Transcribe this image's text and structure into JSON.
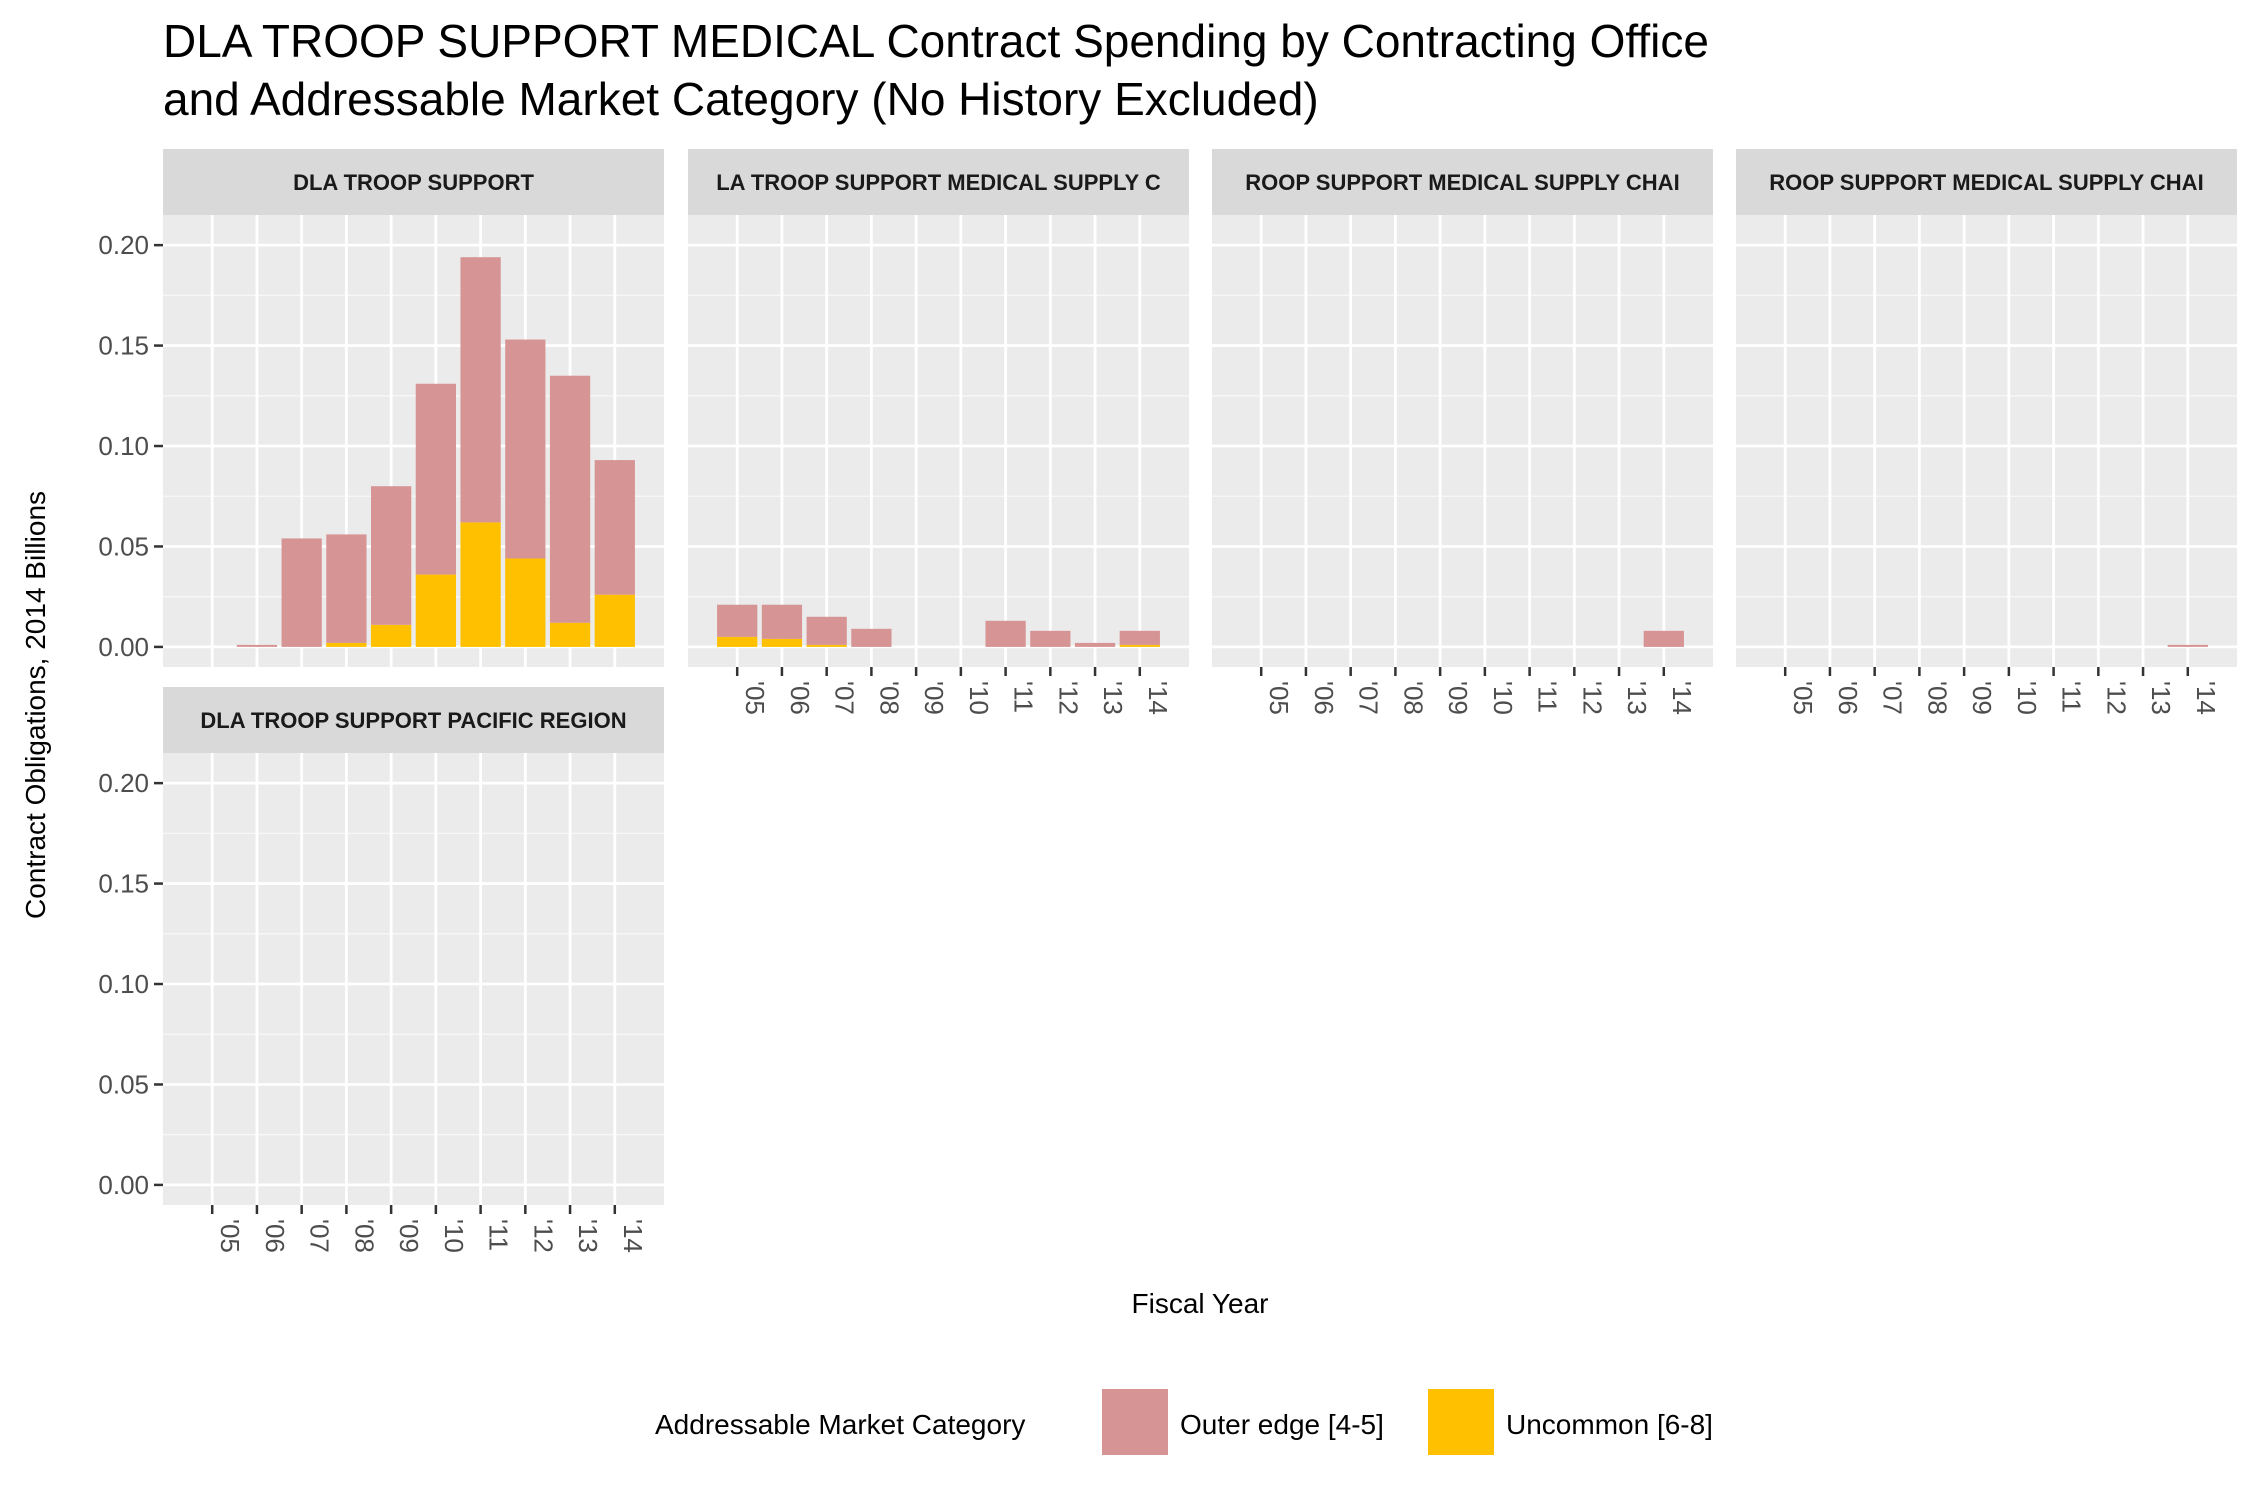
{
  "chart_data": {
    "type": "bar",
    "stacked": true,
    "title_lines": [
      "DLA TROOP SUPPORT MEDICAL Contract Spending by Contracting Office",
      "and Addressable Market Category (No History Excluded)"
    ],
    "xlabel": "Fiscal Year",
    "ylabel": "Contract Obligations, 2014 Billions",
    "ylim": [
      -0.01,
      0.215
    ],
    "yticks": [
      "0.00",
      "0.05",
      "0.10",
      "0.15",
      "0.20"
    ],
    "ytick_values": [
      0,
      0.05,
      0.1,
      0.15,
      0.2
    ],
    "categories": [
      "'05",
      "'06",
      "'07",
      "'08",
      "'09",
      "'10",
      "'11",
      "'12",
      "'13",
      "'14"
    ],
    "legend": {
      "title": "Addressable Market Category",
      "position": "bottom",
      "items": [
        {
          "label": "Outer edge [4-5]",
          "color": "#D69594"
        },
        {
          "label": "Uncommon [6-8]",
          "color": "#FFC000"
        }
      ]
    },
    "panels": [
      {
        "strip": "DLA TROOP SUPPORT",
        "series": [
          {
            "name": "Outer edge [4-5]",
            "values": [
              0,
              0.001,
              0.054,
              0.054,
              0.069,
              0.095,
              0.132,
              0.109,
              0.123,
              0.067
            ]
          },
          {
            "name": "Uncommon [6-8]",
            "values": [
              0,
              0,
              0,
              0.002,
              0.011,
              0.036,
              0.062,
              0.044,
              0.012,
              0.026
            ]
          }
        ]
      },
      {
        "strip": "DLA TROOP SUPPORT MEDICAL SUPPLY CHAIN",
        "strip_visible": "LA TROOP SUPPORT MEDICAL SUPPLY C",
        "series": [
          {
            "name": "Outer edge [4-5]",
            "values": [
              0.016,
              0.017,
              0.014,
              0.009,
              0,
              0,
              0.013,
              0.008,
              0.002,
              0.007
            ]
          },
          {
            "name": "Uncommon [6-8]",
            "values": [
              0.005,
              0.004,
              0.001,
              0,
              0,
              0,
              0,
              0,
              0,
              0.001
            ]
          }
        ]
      },
      {
        "strip": "DLA TROOP SUPPORT MEDICAL SUPPLY CHAIN",
        "strip_visible": "ROOP SUPPORT MEDICAL SUPPLY CHAI",
        "series": [
          {
            "name": "Outer edge [4-5]",
            "values": [
              0,
              0,
              0,
              0,
              0,
              0,
              0,
              0,
              0,
              0.008
            ]
          },
          {
            "name": "Uncommon [6-8]",
            "values": [
              0,
              0,
              0,
              0,
              0,
              0,
              0,
              0,
              0,
              0
            ]
          }
        ]
      },
      {
        "strip": "DLA TROOP SUPPORT MEDICAL SUPPLY CHAIN",
        "strip_visible": "ROOP SUPPORT MEDICAL SUPPLY CHAI",
        "series": [
          {
            "name": "Outer edge [4-5]",
            "values": [
              0,
              0,
              0,
              0,
              0,
              0,
              0,
              0,
              0,
              0.001
            ]
          },
          {
            "name": "Uncommon [6-8]",
            "values": [
              0,
              0,
              0,
              0,
              0,
              0,
              0,
              0,
              0,
              0
            ]
          }
        ]
      },
      {
        "strip": "DLA TROOP SUPPORT PACIFIC REGION",
        "series": [
          {
            "name": "Outer edge [4-5]",
            "values": [
              0,
              0,
              0,
              0,
              0,
              0,
              0,
              0,
              0,
              0
            ]
          },
          {
            "name": "Uncommon [6-8]",
            "values": [
              0,
              0,
              0,
              0,
              0,
              0,
              0,
              0,
              0,
              0
            ]
          }
        ]
      }
    ],
    "grid": true
  }
}
